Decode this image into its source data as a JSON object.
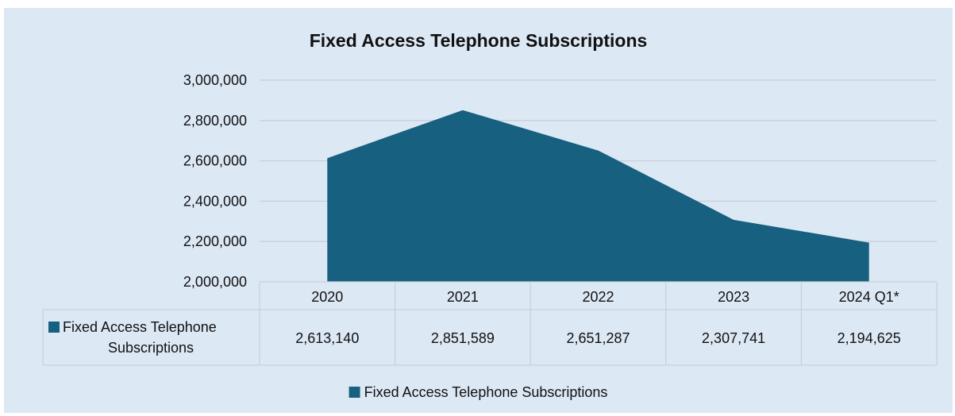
{
  "chart_data": {
    "type": "area",
    "title": "Fixed Access Telephone Subscriptions",
    "categories": [
      "2020",
      "2021",
      "2022",
      "2023",
      "2024 Q1*"
    ],
    "series": [
      {
        "name": "Fixed Access Telephone Subscriptions",
        "values": [
          2613140,
          2851589,
          2651287,
          2307741,
          2194625
        ],
        "value_labels": [
          "2,613,140",
          "2,851,589",
          "2,651,287",
          "2,307,741",
          "2,194,625"
        ]
      }
    ],
    "ylim": [
      2000000,
      3000000
    ],
    "y_ticks": [
      {
        "value": 2000000,
        "label": "2,000,000"
      },
      {
        "value": 2200000,
        "label": "2,200,000"
      },
      {
        "value": 2400000,
        "label": "2,400,000"
      },
      {
        "value": 2600000,
        "label": "2,600,000"
      },
      {
        "value": 2800000,
        "label": "2,800,000"
      },
      {
        "value": 3000000,
        "label": "3,000,000"
      }
    ],
    "grid": true,
    "data_table": true,
    "legend_position": "bottom",
    "colors": {
      "series": "#17607f",
      "background": "#dde8f5",
      "grid": "#ffffff",
      "table_border": "#c8d1dc"
    }
  }
}
